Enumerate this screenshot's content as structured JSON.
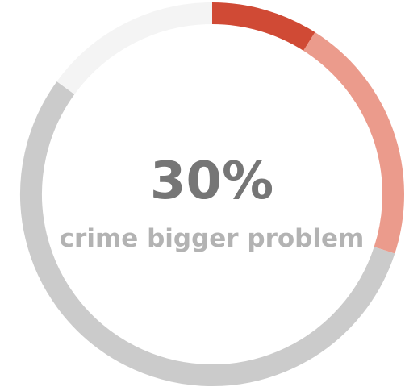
{
  "center": {
    "value": "30%",
    "label": "crime bigger problem"
  },
  "chart_data": {
    "type": "pie",
    "style": "donut",
    "slices": [
      {
        "value": 9,
        "color": "#d04a35"
      },
      {
        "value": 21,
        "color": "#eb9b8c"
      },
      {
        "value": 55,
        "color": "#cbcbcb"
      },
      {
        "value": 15,
        "color": "#f4f4f4"
      }
    ]
  }
}
